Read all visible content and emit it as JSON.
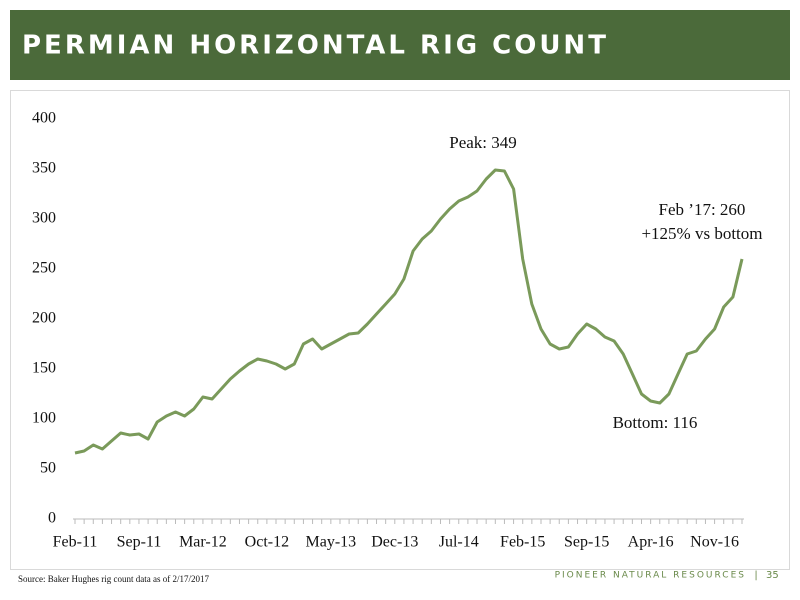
{
  "chart_data": {
    "type": "line",
    "title": "PERMIAN HORIZONTAL RIG COUNT",
    "categories": [
      "Feb-11",
      null,
      null,
      null,
      null,
      null,
      null,
      "Sep-11",
      null,
      null,
      null,
      null,
      null,
      null,
      "Mar-12",
      null,
      null,
      null,
      null,
      null,
      null,
      "Oct-12",
      null,
      null,
      null,
      null,
      null,
      null,
      "May-13",
      null,
      null,
      null,
      null,
      null,
      null,
      "Dec-13",
      null,
      null,
      null,
      null,
      null,
      null,
      "Jul-14",
      null,
      null,
      null,
      null,
      null,
      null,
      "Feb-15",
      null,
      null,
      null,
      null,
      null,
      null,
      "Sep-15",
      null,
      null,
      null,
      null,
      null,
      null,
      "Apr-16",
      null,
      null,
      null,
      null,
      null,
      null,
      "Nov-16",
      null,
      null,
      null
    ],
    "values": [
      66,
      68,
      74,
      70,
      78,
      86,
      84,
      85,
      80,
      97,
      103,
      107,
      103,
      110,
      122,
      120,
      130,
      140,
      148,
      155,
      160,
      158,
      155,
      150,
      155,
      175,
      180,
      170,
      175,
      180,
      185,
      186,
      195,
      205,
      215,
      225,
      240,
      268,
      280,
      288,
      300,
      310,
      318,
      322,
      328,
      340,
      349,
      348,
      330,
      260,
      215,
      190,
      175,
      170,
      172,
      185,
      195,
      190,
      182,
      178,
      165,
      145,
      125,
      118,
      116,
      125,
      145,
      165,
      168,
      180,
      190,
      212,
      222,
      260
    ],
    "color": "#7a9a5a",
    "ylim": [
      0,
      400
    ],
    "yticks": [
      0,
      50,
      100,
      150,
      200,
      250,
      300,
      350,
      400
    ],
    "grid": false,
    "annotations": [
      "Peak: 349",
      "Feb ’17: 260",
      "+125% vs bottom",
      "Bottom: 116"
    ],
    "source": "Source: Baker Hughes rig count data as of 2/17/2017"
  },
  "footer": {
    "company": "PIONEER NATURAL RESOURCES",
    "separator": "|",
    "page": "35"
  }
}
